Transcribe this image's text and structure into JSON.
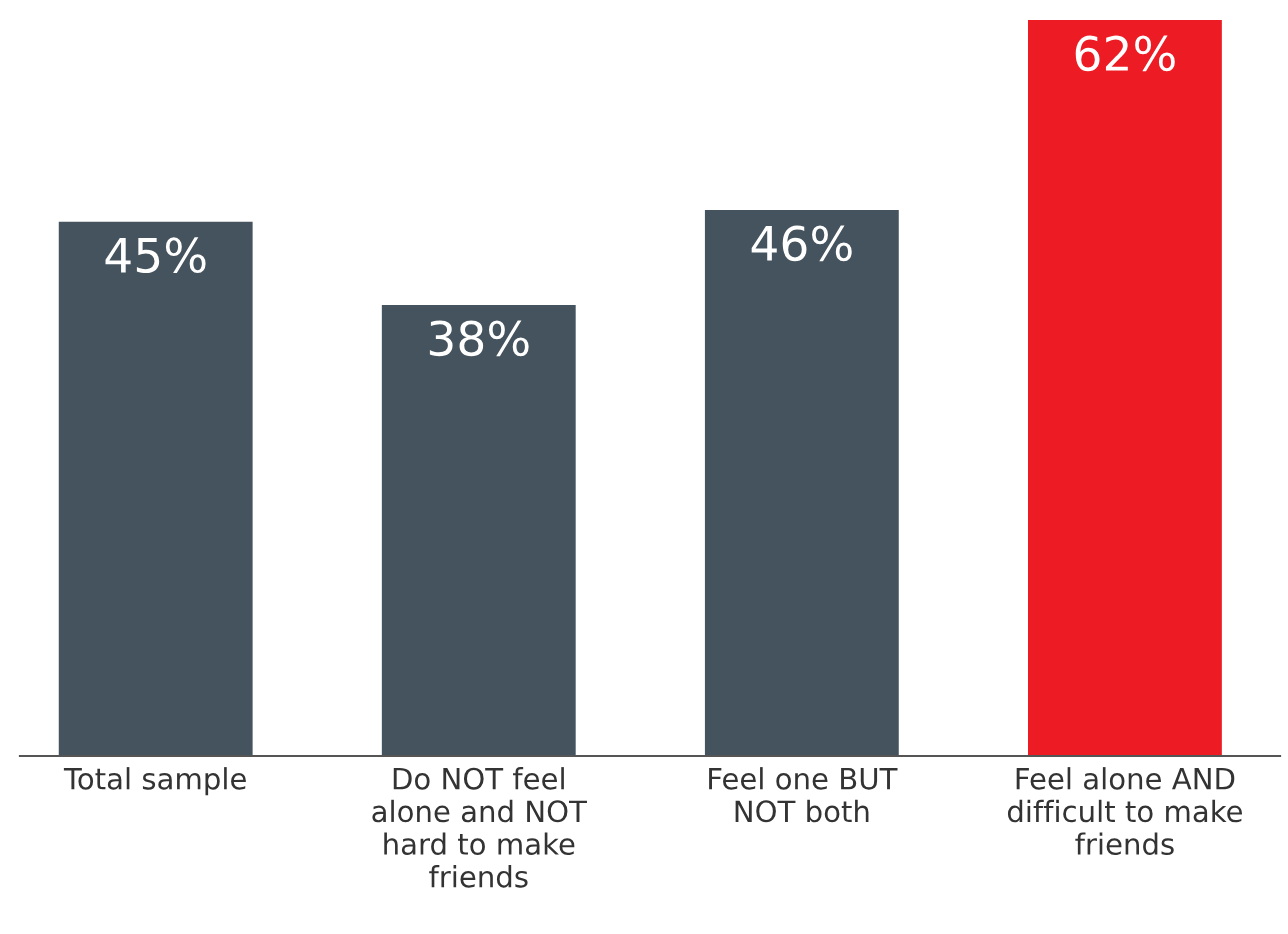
{
  "chart_data": {
    "type": "bar",
    "ylim": [
      0,
      62
    ],
    "tick_labels": "x",
    "categories": [
      "Total sample",
      "Do NOT feel\nalone and NOT\nhard to make\nfriends",
      "Feel one BUT\nNOT both",
      "Feel alone AND\ndifficult to make\nfriends"
    ],
    "values": [
      45,
      38,
      46,
      62
    ],
    "colors": [
      "#44535e",
      "#44535e",
      "#44535e",
      "#ed1c24"
    ],
    "value_labels": [
      "45%",
      "38%",
      "46%",
      "62%"
    ]
  }
}
